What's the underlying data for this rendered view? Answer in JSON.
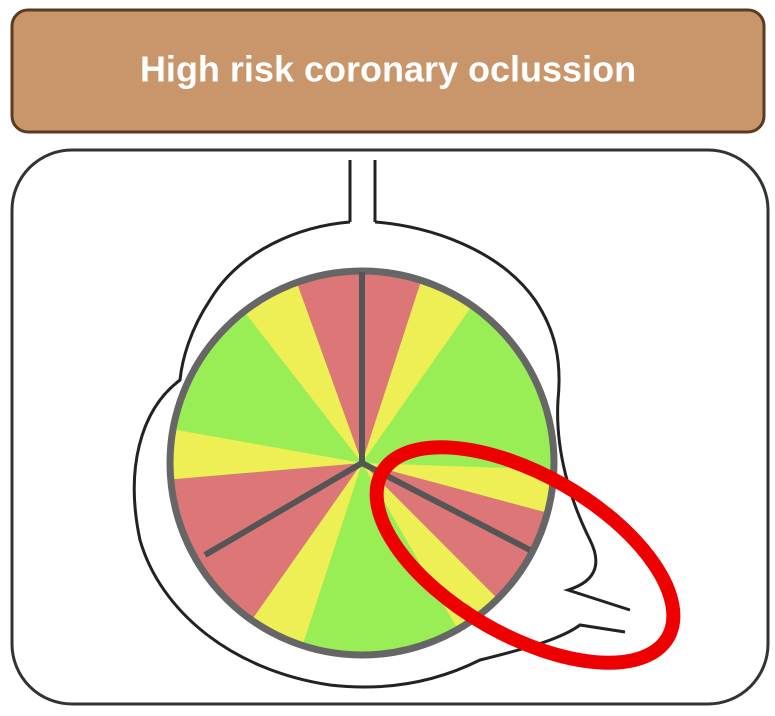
{
  "header": {
    "title": "High risk coronary oclussion"
  }
}
